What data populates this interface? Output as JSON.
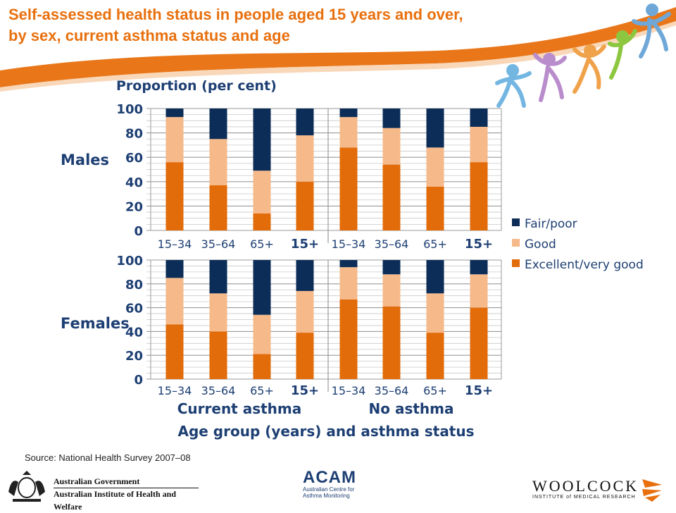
{
  "title_lines": [
    "Self-assessed health status in people aged 15 years and over,",
    "by sex, current asthma status and age"
  ],
  "source": "Source: National Health Survey 2007–08",
  "logos": {
    "gov_line1": "Australian Government",
    "gov_line2": "Australian Institute of Health and Welfare",
    "acam_name": "ACAM",
    "acam_sub1": "Australian Centre for",
    "acam_sub2": "Asthma Monitoring",
    "woolcock_name": "WOOLCOCK",
    "woolcock_sub": "INSTITUTE of MEDICAL RESEARCH"
  },
  "colors": {
    "title": "#e8700e",
    "fair_poor": "#0b2d57",
    "good": "#f5b98a",
    "excellent": "#e26b0a",
    "swoosh": "#e8700e"
  },
  "chart_data": {
    "type": "bar",
    "stacked": true,
    "ylabel": "Proportion (per cent)",
    "xlabel": "Age group (years) and asthma status",
    "ylim": [
      0,
      100
    ],
    "yticks": [
      0,
      20,
      40,
      60,
      80,
      100
    ],
    "grid": true,
    "legend_position": "right",
    "groups": [
      "Current asthma",
      "No asthma"
    ],
    "categories": [
      "15–34",
      "35–64",
      "65+",
      "15+"
    ],
    "bold_categories": [
      "15+"
    ],
    "series_names": [
      "Fair/poor",
      "Good",
      "Excellent/very good"
    ],
    "panels": [
      {
        "name": "Males",
        "series": [
          {
            "name": "Excellent/very good",
            "current_asthma": [
              56,
              37,
              14,
              40
            ],
            "no_asthma": [
              68,
              54,
              36,
              56
            ]
          },
          {
            "name": "Good",
            "current_asthma": [
              37,
              38,
              35,
              38
            ],
            "no_asthma": [
              25,
              30,
              32,
              29
            ]
          },
          {
            "name": "Fair/poor",
            "current_asthma": [
              7,
              25,
              51,
              22
            ],
            "no_asthma": [
              7,
              16,
              32,
              15
            ]
          }
        ]
      },
      {
        "name": "Females",
        "series": [
          {
            "name": "Excellent/very good",
            "current_asthma": [
              46,
              40,
              21,
              39
            ],
            "no_asthma": [
              67,
              61,
              39,
              60
            ]
          },
          {
            "name": "Good",
            "current_asthma": [
              39,
              32,
              33,
              35
            ],
            "no_asthma": [
              27,
              27,
              33,
              28
            ]
          },
          {
            "name": "Fair/poor",
            "current_asthma": [
              15,
              28,
              46,
              26
            ],
            "no_asthma": [
              6,
              12,
              28,
              12
            ]
          }
        ]
      }
    ]
  }
}
